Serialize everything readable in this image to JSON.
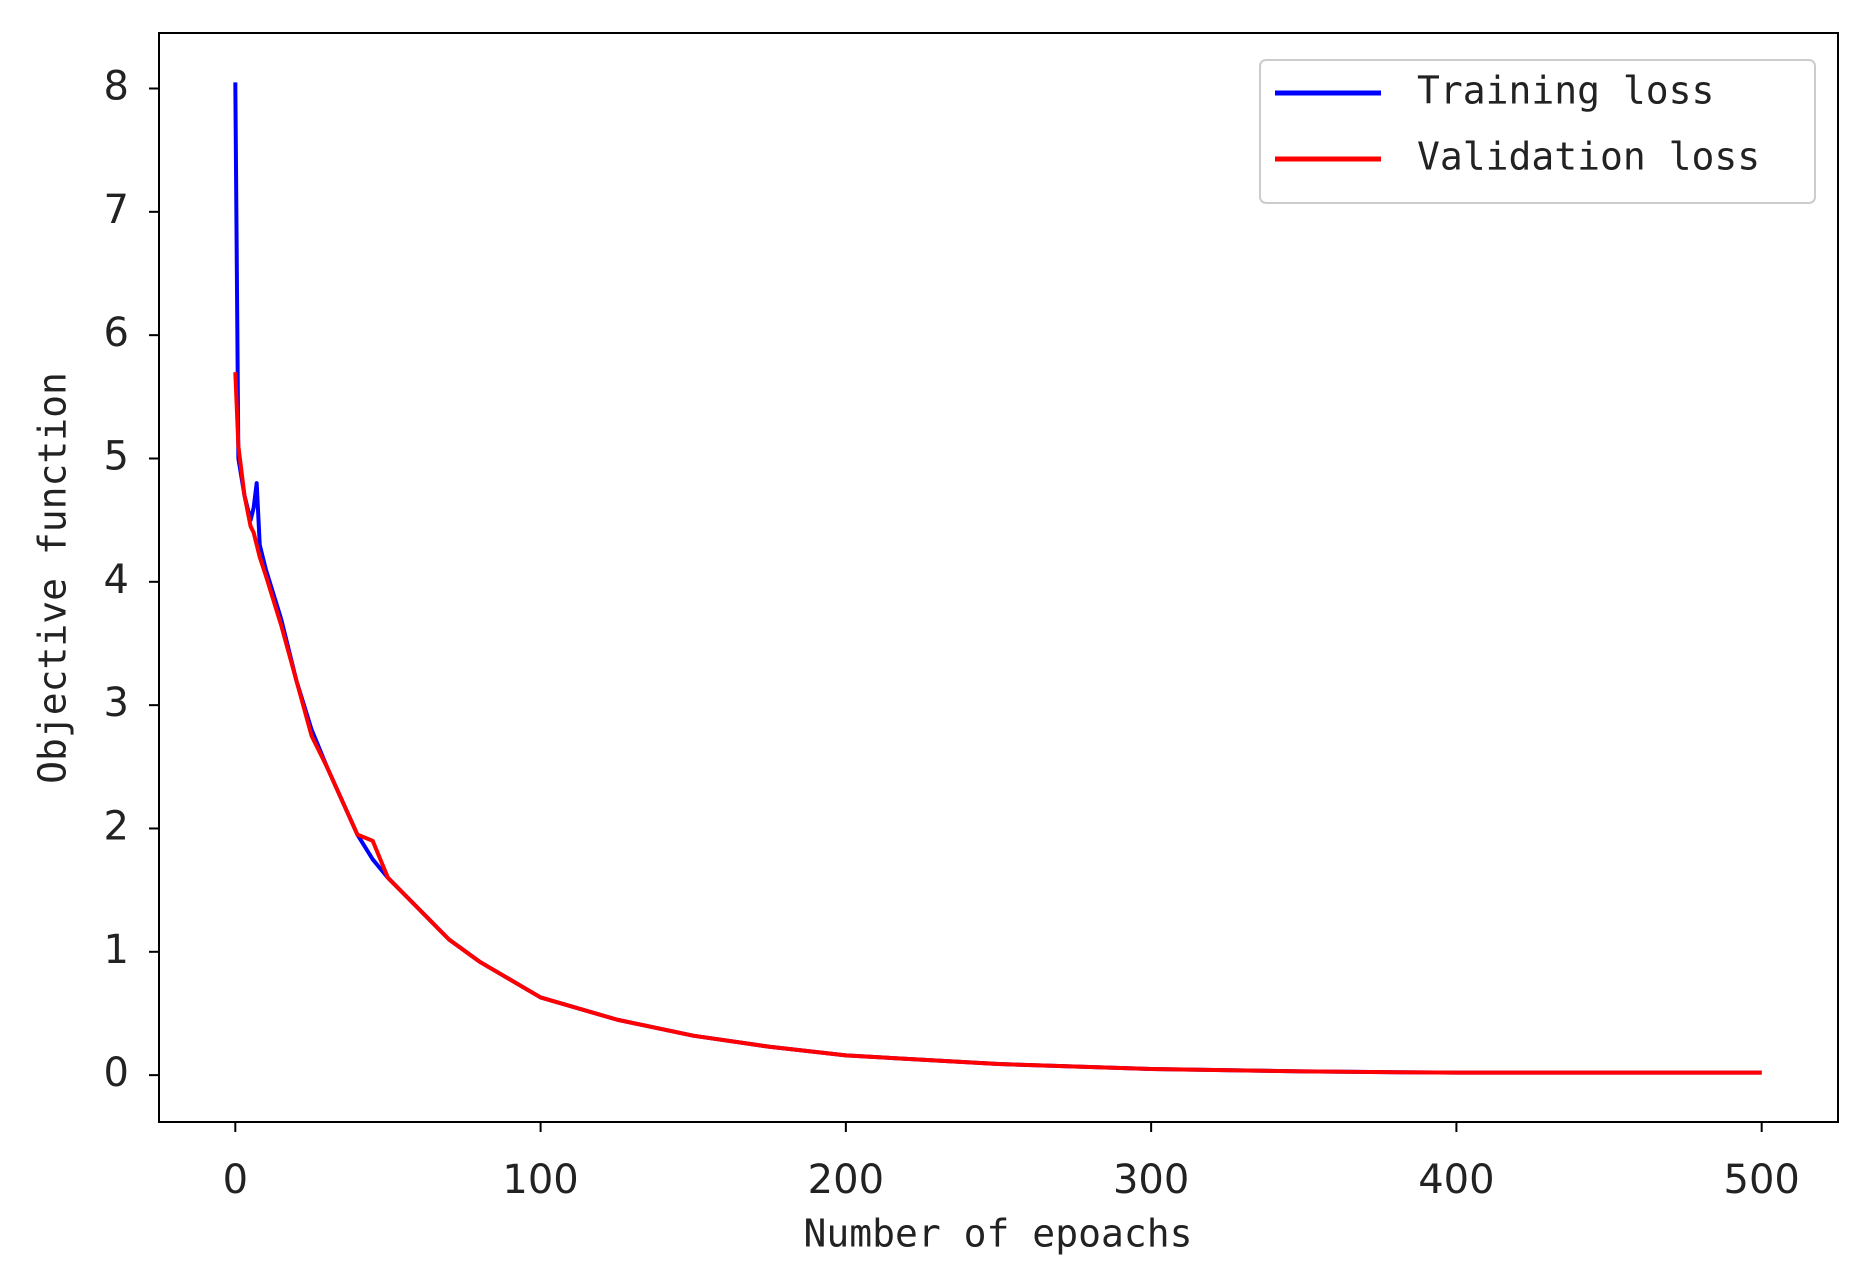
{
  "chart_data": {
    "type": "line",
    "xlabel": "Number of epoachs",
    "ylabel": "Objective function",
    "x": [
      0,
      1,
      3,
      5,
      6,
      7,
      8,
      10,
      15,
      20,
      25,
      30,
      40,
      45,
      50,
      60,
      70,
      80,
      100,
      125,
      150,
      175,
      200,
      250,
      300,
      350,
      400,
      450,
      500
    ],
    "series": [
      {
        "name": "Training loss",
        "color": "#0000ff",
        "values": [
          8.05,
          5.0,
          4.7,
          4.5,
          4.6,
          4.8,
          4.3,
          4.1,
          3.7,
          3.2,
          2.8,
          2.5,
          1.95,
          1.75,
          1.6,
          1.35,
          1.1,
          0.92,
          0.63,
          0.45,
          0.32,
          0.23,
          0.16,
          0.09,
          0.05,
          0.03,
          0.02,
          0.02,
          0.02
        ]
      },
      {
        "name": "Validation loss",
        "color": "#ff0000",
        "values": [
          5.7,
          5.1,
          4.7,
          4.45,
          4.4,
          4.3,
          4.2,
          4.05,
          3.65,
          3.2,
          2.75,
          2.5,
          1.95,
          1.9,
          1.6,
          1.35,
          1.1,
          0.92,
          0.63,
          0.45,
          0.32,
          0.23,
          0.16,
          0.09,
          0.05,
          0.03,
          0.02,
          0.02,
          0.02
        ]
      }
    ],
    "xlim": [
      -25,
      525
    ],
    "ylim": [
      -0.38,
      8.45
    ],
    "xticks": [
      0,
      100,
      200,
      300,
      400,
      500
    ],
    "yticks": [
      0,
      1,
      2,
      3,
      4,
      5,
      6,
      7,
      8
    ],
    "legend": "upper right",
    "grid": false
  }
}
